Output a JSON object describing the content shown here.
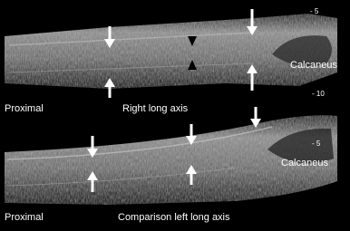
{
  "panels": [
    {
      "depth_marks": [
        "- 5",
        "- 10"
      ],
      "landmark": "Calcaneus",
      "orientation": "Proximal",
      "caption": "Right long axis"
    },
    {
      "depth_marks": [
        "- 5"
      ],
      "landmark": "Calcaneus",
      "orientation": "Proximal",
      "caption": "Comparison left long axis"
    }
  ]
}
